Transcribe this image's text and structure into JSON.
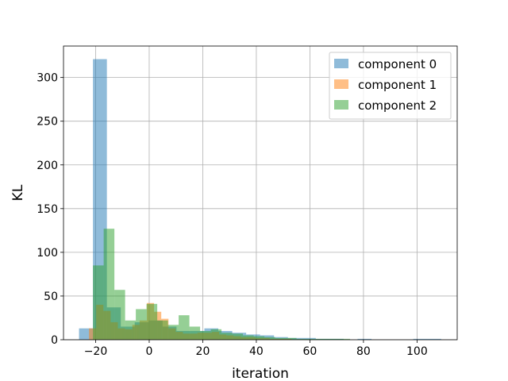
{
  "chart_data": {
    "type": "bar",
    "subtype": "overlapping-histogram",
    "title": "",
    "xlabel": "iteration",
    "ylabel": "KL",
    "xlim": [
      -32,
      115
    ],
    "ylim": [
      0,
      336
    ],
    "xticks": [
      -20,
      0,
      20,
      40,
      60,
      80,
      100
    ],
    "yticks": [
      0,
      50,
      100,
      150,
      200,
      250,
      300
    ],
    "xtick_labels": [
      "−20",
      "0",
      "20",
      "40",
      "60",
      "80",
      "100"
    ],
    "ytick_labels": [
      "0",
      "50",
      "100",
      "150",
      "200",
      "250",
      "300"
    ],
    "grid": true,
    "legend_position": "top-right",
    "series": [
      {
        "name": "component 0",
        "color": "#1f77b4",
        "opacity": 0.5,
        "bins": [
          {
            "x0": -26.2,
            "x1": -21.0,
            "y": 13
          },
          {
            "x0": -21.0,
            "x1": -15.8,
            "y": 321
          },
          {
            "x0": -15.8,
            "x1": -10.6,
            "y": 37
          },
          {
            "x0": -10.6,
            "x1": -5.4,
            "y": 15
          },
          {
            "x0": -5.4,
            "x1": -0.2,
            "y": 20
          },
          {
            "x0": -0.2,
            "x1": 5.0,
            "y": 22
          },
          {
            "x0": 5.0,
            "x1": 10.2,
            "y": 15
          },
          {
            "x0": 10.2,
            "x1": 15.4,
            "y": 10
          },
          {
            "x0": 15.4,
            "x1": 20.6,
            "y": 10
          },
          {
            "x0": 20.6,
            "x1": 25.8,
            "y": 13
          },
          {
            "x0": 25.8,
            "x1": 31.0,
            "y": 10
          },
          {
            "x0": 31.0,
            "x1": 36.2,
            "y": 8
          },
          {
            "x0": 36.2,
            "x1": 41.4,
            "y": 6
          },
          {
            "x0": 41.4,
            "x1": 46.6,
            "y": 5
          },
          {
            "x0": 46.6,
            "x1": 51.8,
            "y": 3
          },
          {
            "x0": 51.8,
            "x1": 57.0,
            "y": 2
          },
          {
            "x0": 57.0,
            "x1": 62.2,
            "y": 2
          },
          {
            "x0": 62.2,
            "x1": 67.4,
            "y": 1
          },
          {
            "x0": 67.4,
            "x1": 72.6,
            "y": 1
          },
          {
            "x0": 72.6,
            "x1": 77.8,
            "y": 0
          },
          {
            "x0": 77.8,
            "x1": 83.0,
            "y": 1
          },
          {
            "x0": 83.0,
            "x1": 88.2,
            "y": 0
          },
          {
            "x0": 88.2,
            "x1": 93.4,
            "y": 0
          },
          {
            "x0": 93.4,
            "x1": 98.6,
            "y": 0
          },
          {
            "x0": 98.6,
            "x1": 103.8,
            "y": 1
          },
          {
            "x0": 103.8,
            "x1": 109.0,
            "y": 1
          }
        ]
      },
      {
        "name": "component 1",
        "color": "#ff7f0e",
        "opacity": 0.5,
        "bins": [
          {
            "x0": -22.5,
            "x1": -19.8,
            "y": 13
          },
          {
            "x0": -19.8,
            "x1": -17.1,
            "y": 40
          },
          {
            "x0": -17.1,
            "x1": -14.4,
            "y": 33
          },
          {
            "x0": -14.4,
            "x1": -11.7,
            "y": 20
          },
          {
            "x0": -11.7,
            "x1": -9.0,
            "y": 13
          },
          {
            "x0": -9.0,
            "x1": -6.3,
            "y": 12
          },
          {
            "x0": -6.3,
            "x1": -3.6,
            "y": 17
          },
          {
            "x0": -3.6,
            "x1": -0.9,
            "y": 22
          },
          {
            "x0": -0.9,
            "x1": 1.8,
            "y": 42
          },
          {
            "x0": 1.8,
            "x1": 4.5,
            "y": 32
          },
          {
            "x0": 4.5,
            "x1": 7.2,
            "y": 24
          },
          {
            "x0": 7.2,
            "x1": 9.9,
            "y": 13
          },
          {
            "x0": 9.9,
            "x1": 12.6,
            "y": 9
          },
          {
            "x0": 12.6,
            "x1": 15.3,
            "y": 7
          },
          {
            "x0": 15.3,
            "x1": 18.0,
            "y": 7
          },
          {
            "x0": 18.0,
            "x1": 20.7,
            "y": 8
          },
          {
            "x0": 20.7,
            "x1": 23.4,
            "y": 8
          },
          {
            "x0": 23.4,
            "x1": 26.1,
            "y": 9
          },
          {
            "x0": 26.1,
            "x1": 28.8,
            "y": 6
          },
          {
            "x0": 28.8,
            "x1": 31.5,
            "y": 5
          },
          {
            "x0": 31.5,
            "x1": 34.2,
            "y": 4
          },
          {
            "x0": 34.2,
            "x1": 36.9,
            "y": 3
          },
          {
            "x0": 36.9,
            "x1": 39.6,
            "y": 3
          },
          {
            "x0": 39.6,
            "x1": 42.3,
            "y": 2
          },
          {
            "x0": 42.3,
            "x1": 45.0,
            "y": 2
          },
          {
            "x0": 45.0,
            "x1": 47.7,
            "y": 1
          },
          {
            "x0": 47.7,
            "x1": 50.4,
            "y": 1
          },
          {
            "x0": 50.4,
            "x1": 53.1,
            "y": 1
          }
        ]
      },
      {
        "name": "component 2",
        "color": "#2ca02c",
        "opacity": 0.5,
        "bins": [
          {
            "x0": -21.0,
            "x1": -17.0,
            "y": 85
          },
          {
            "x0": -17.0,
            "x1": -13.0,
            "y": 127
          },
          {
            "x0": -13.0,
            "x1": -9.0,
            "y": 57
          },
          {
            "x0": -9.0,
            "x1": -5.0,
            "y": 22
          },
          {
            "x0": -5.0,
            "x1": -1.0,
            "y": 35
          },
          {
            "x0": -1.0,
            "x1": 3.0,
            "y": 41
          },
          {
            "x0": 3.0,
            "x1": 7.0,
            "y": 22
          },
          {
            "x0": 7.0,
            "x1": 11.0,
            "y": 17
          },
          {
            "x0": 11.0,
            "x1": 15.0,
            "y": 28
          },
          {
            "x0": 15.0,
            "x1": 19.0,
            "y": 15
          },
          {
            "x0": 19.0,
            "x1": 23.0,
            "y": 10
          },
          {
            "x0": 23.0,
            "x1": 27.0,
            "y": 12
          },
          {
            "x0": 27.0,
            "x1": 31.0,
            "y": 8
          },
          {
            "x0": 31.0,
            "x1": 35.0,
            "y": 7
          },
          {
            "x0": 35.0,
            "x1": 39.0,
            "y": 5
          },
          {
            "x0": 39.0,
            "x1": 43.0,
            "y": 4
          },
          {
            "x0": 43.0,
            "x1": 47.0,
            "y": 3
          },
          {
            "x0": 47.0,
            "x1": 51.0,
            "y": 2
          },
          {
            "x0": 51.0,
            "x1": 55.0,
            "y": 2
          },
          {
            "x0": 55.0,
            "x1": 59.0,
            "y": 1
          },
          {
            "x0": 59.0,
            "x1": 63.0,
            "y": 1
          },
          {
            "x0": 63.0,
            "x1": 67.0,
            "y": 1
          },
          {
            "x0": 67.0,
            "x1": 71.0,
            "y": 1
          },
          {
            "x0": 71.0,
            "x1": 75.0,
            "y": 1
          }
        ]
      }
    ]
  }
}
